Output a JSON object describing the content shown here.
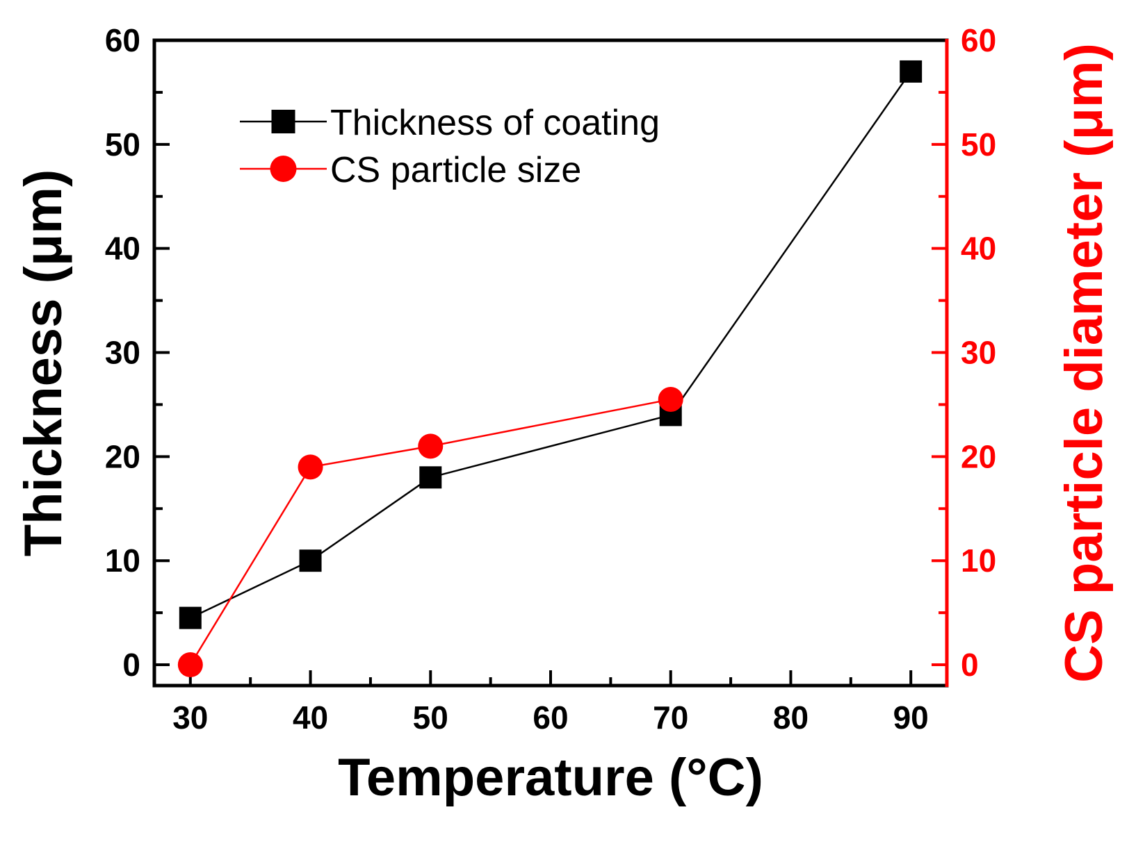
{
  "chart_data": {
    "type": "line",
    "title": "",
    "xlabel": "Temperature (°C)",
    "ylabel": "Thickness (μm)",
    "y2label": "CS particle diameter (μm)",
    "xlim": [
      27,
      93
    ],
    "ylim": [
      -2,
      60
    ],
    "y2lim": [
      -2,
      60
    ],
    "x_ticks": [
      30,
      40,
      50,
      60,
      70,
      80,
      90
    ],
    "y_ticks": [
      0,
      10,
      20,
      30,
      40,
      50,
      60
    ],
    "y2_ticks": [
      0,
      10,
      20,
      30,
      40,
      50,
      60
    ],
    "legend_position": "top-left",
    "colors": {
      "axis": "#000000",
      "right_axis": "#ff0000"
    },
    "series": [
      {
        "name": "Thickness of coating",
        "axis": "left",
        "color": "#000000",
        "marker": "square",
        "x": [
          30,
          40,
          50,
          70,
          90
        ],
        "values": [
          4.5,
          10,
          18,
          24,
          57
        ]
      },
      {
        "name": "CS particle size",
        "axis": "right",
        "color": "#ff0000",
        "marker": "circle",
        "x": [
          30,
          40,
          50,
          70
        ],
        "values": [
          0,
          19,
          21,
          25.5
        ]
      }
    ]
  }
}
